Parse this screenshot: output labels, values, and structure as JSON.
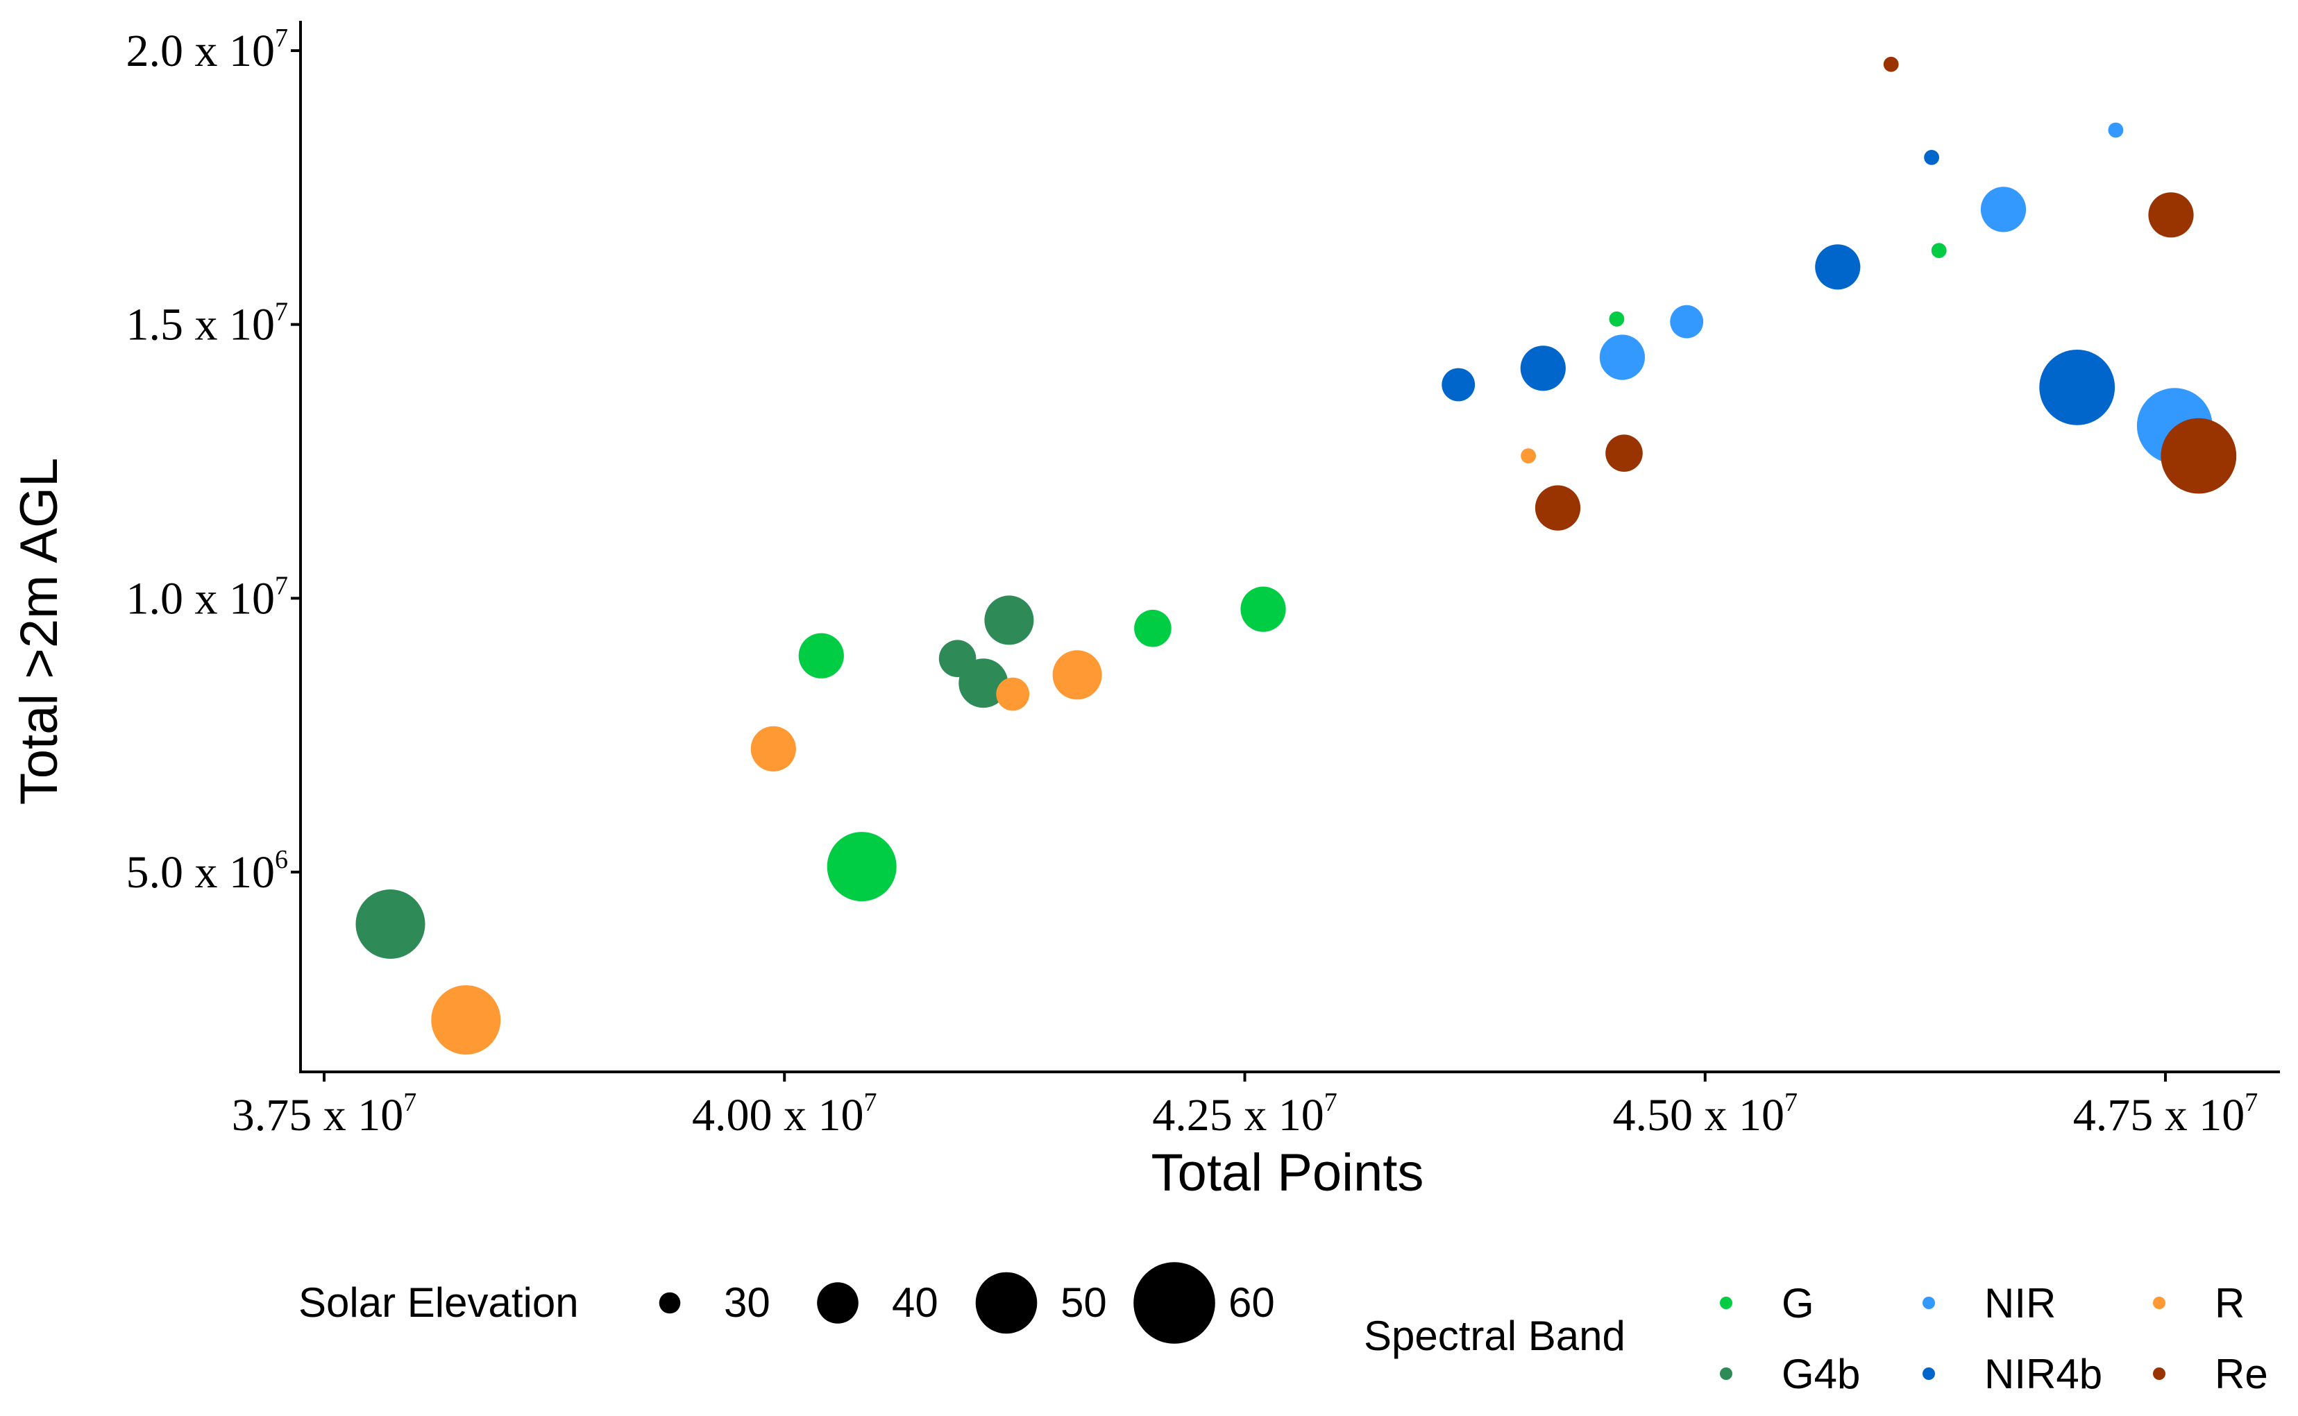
{
  "chart_data": {
    "type": "scatter",
    "title": "",
    "xlabel": "Total Points",
    "ylabel": "Total >2m AGL",
    "xlim": [
      37250000,
      48300000
    ],
    "ylim": [
      1800000,
      20500000
    ],
    "x_ticks": [
      {
        "value": 37500000,
        "mantissa": "3.75",
        "exponent": "7"
      },
      {
        "value": 40000000,
        "mantissa": "4.00",
        "exponent": "7"
      },
      {
        "value": 42500000,
        "mantissa": "4.25",
        "exponent": "7"
      },
      {
        "value": 45000000,
        "mantissa": "4.50",
        "exponent": "7"
      },
      {
        "value": 47500000,
        "mantissa": "4.75",
        "exponent": "7"
      }
    ],
    "y_ticks": [
      {
        "value": 5000000,
        "mantissa": "5.0",
        "exponent": "6"
      },
      {
        "value": 10000000,
        "mantissa": "1.0",
        "exponent": "7"
      },
      {
        "value": 15000000,
        "mantissa": "1.5",
        "exponent": "7"
      },
      {
        "value": 20000000,
        "mantissa": "2.0",
        "exponent": "7"
      }
    ],
    "tick_separator": "x 10",
    "grid": false,
    "size_legend": {
      "title": "Solar Elevation",
      "values": [
        30,
        40,
        50,
        60
      ]
    },
    "color_legend": {
      "title": "Spectral Band",
      "entries": [
        {
          "name": "G",
          "color": "#00cc44"
        },
        {
          "name": "G4b",
          "color": "#2e8b57"
        },
        {
          "name": "NIR",
          "color": "#3399ff"
        },
        {
          "name": "NIR4b",
          "color": "#0066cc"
        },
        {
          "name": "R",
          "color": "#ff9933"
        },
        {
          "name": "Re",
          "color": "#993300"
        }
      ]
    },
    "points": [
      {
        "band": "G",
        "x": 40200000,
        "y": 8950000,
        "solar_elevation": 42
      },
      {
        "band": "G",
        "x": 40420000,
        "y": 5100000,
        "solar_elevation": 54
      },
      {
        "band": "G",
        "x": 42000000,
        "y": 9450000,
        "solar_elevation": 38
      },
      {
        "band": "G",
        "x": 42600000,
        "y": 9800000,
        "solar_elevation": 42
      },
      {
        "band": "G",
        "x": 44520000,
        "y": 15100000,
        "solar_elevation": 27
      },
      {
        "band": "G",
        "x": 46270000,
        "y": 16350000,
        "solar_elevation": 27
      },
      {
        "band": "G4b",
        "x": 37860000,
        "y": 4050000,
        "solar_elevation": 54
      },
      {
        "band": "G4b",
        "x": 40940000,
        "y": 8900000,
        "solar_elevation": 38
      },
      {
        "band": "G4b",
        "x": 41080000,
        "y": 8450000,
        "solar_elevation": 44
      },
      {
        "band": "G4b",
        "x": 41220000,
        "y": 9600000,
        "solar_elevation": 44
      },
      {
        "band": "NIR",
        "x": 44550000,
        "y": 14400000,
        "solar_elevation": 42
      },
      {
        "band": "NIR",
        "x": 44900000,
        "y": 15050000,
        "solar_elevation": 36
      },
      {
        "band": "NIR",
        "x": 46620000,
        "y": 17100000,
        "solar_elevation": 42
      },
      {
        "band": "NIR",
        "x": 47230000,
        "y": 18550000,
        "solar_elevation": 27
      },
      {
        "band": "NIR",
        "x": 47550000,
        "y": 13150000,
        "solar_elevation": 57
      },
      {
        "band": "NIR4b",
        "x": 43660000,
        "y": 13900000,
        "solar_elevation": 36
      },
      {
        "band": "NIR4b",
        "x": 44120000,
        "y": 14200000,
        "solar_elevation": 42
      },
      {
        "band": "NIR4b",
        "x": 45720000,
        "y": 16050000,
        "solar_elevation": 42
      },
      {
        "band": "NIR4b",
        "x": 46230000,
        "y": 18050000,
        "solar_elevation": 27
      },
      {
        "band": "NIR4b",
        "x": 47020000,
        "y": 13850000,
        "solar_elevation": 57
      },
      {
        "band": "R",
        "x": 38270000,
        "y": 2300000,
        "solar_elevation": 54
      },
      {
        "band": "R",
        "x": 39940000,
        "y": 7250000,
        "solar_elevation": 42
      },
      {
        "band": "R",
        "x": 41240000,
        "y": 8250000,
        "solar_elevation": 36
      },
      {
        "band": "R",
        "x": 41590000,
        "y": 8600000,
        "solar_elevation": 44
      },
      {
        "band": "R",
        "x": 44040000,
        "y": 12600000,
        "solar_elevation": 27
      },
      {
        "band": "Re",
        "x": 44200000,
        "y": 11650000,
        "solar_elevation": 42
      },
      {
        "band": "Re",
        "x": 44560000,
        "y": 12650000,
        "solar_elevation": 38
      },
      {
        "band": "Re",
        "x": 46010000,
        "y": 19750000,
        "solar_elevation": 27
      },
      {
        "band": "Re",
        "x": 47530000,
        "y": 17000000,
        "solar_elevation": 42
      },
      {
        "band": "Re",
        "x": 47680000,
        "y": 12600000,
        "solar_elevation": 57
      }
    ]
  }
}
